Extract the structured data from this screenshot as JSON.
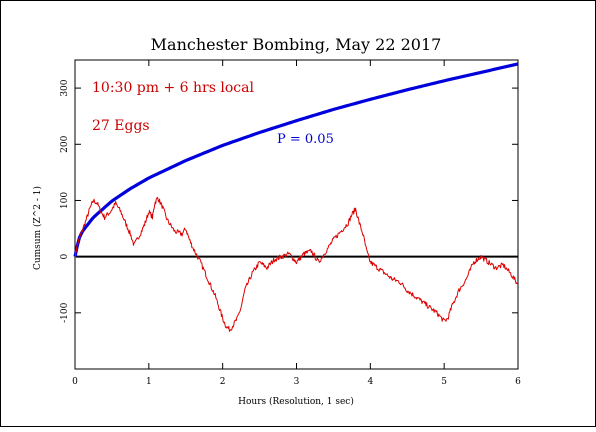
{
  "chart_data": {
    "type": "line",
    "title": "Manchester Bombing, May 22 2017",
    "xlabel": "Hours (Resolution, 1 sec)",
    "ylabel": "Cumsum (Z^2 - 1)",
    "xlim": [
      0,
      6
    ],
    "ylim": [
      -200,
      350
    ],
    "x_ticks": [
      "0",
      "1",
      "2",
      "3",
      "4",
      "5",
      "6"
    ],
    "y_ticks": [
      "-100",
      "0",
      "100",
      "200",
      "300"
    ],
    "annotations": [
      {
        "text": "10:30 pm + 6 hrs local",
        "color": "#cc0000"
      },
      {
        "text": "27 Eggs",
        "color": "#cc0000"
      },
      {
        "text": "P = 0.05",
        "color": "#0000cc"
      }
    ],
    "baseline": 0,
    "series": [
      {
        "role": "probability-envelope",
        "color": "#0000dd",
        "x": [
          0,
          0.05,
          0.1,
          0.25,
          0.5,
          0.75,
          1,
          1.5,
          2,
          2.5,
          3,
          3.5,
          4,
          4.5,
          5,
          5.5,
          6
        ],
        "values": [
          0,
          31,
          45,
          70,
          99,
          121,
          140,
          171,
          198,
          221,
          242,
          262,
          280,
          297,
          313,
          328,
          343
        ]
      },
      {
        "role": "cumulative-deviation",
        "color": "#dd0000",
        "x": [
          0,
          0.03,
          0.08,
          0.15,
          0.2,
          0.25,
          0.3,
          0.35,
          0.4,
          0.48,
          0.55,
          0.62,
          0.7,
          0.75,
          0.8,
          0.9,
          0.95,
          1.0,
          1.05,
          1.08,
          1.12,
          1.18,
          1.25,
          1.35,
          1.45,
          1.5,
          1.55,
          1.6,
          1.7,
          1.8,
          1.9,
          1.95,
          2.0,
          2.05,
          2.1,
          2.15,
          2.2,
          2.25,
          2.3,
          2.4,
          2.5,
          2.6,
          2.7,
          2.8,
          2.9,
          3.0,
          3.1,
          3.2,
          3.3,
          3.4,
          3.5,
          3.6,
          3.7,
          3.75,
          3.8,
          3.85,
          3.9,
          3.95,
          4.0,
          4.1,
          4.2,
          4.3,
          4.4,
          4.5,
          4.6,
          4.7,
          4.8,
          4.9,
          5.0,
          5.05,
          5.1,
          5.2,
          5.3,
          5.4,
          5.5,
          5.6,
          5.7,
          5.8,
          5.9,
          6.0
        ],
        "values": [
          0,
          20,
          40,
          65,
          85,
          100,
          95,
          80,
          70,
          80,
          95,
          80,
          55,
          40,
          20,
          45,
          60,
          80,
          70,
          95,
          105,
          90,
          65,
          45,
          40,
          50,
          30,
          15,
          -10,
          -40,
          -70,
          -90,
          -110,
          -125,
          -130,
          -120,
          -110,
          -90,
          -60,
          -30,
          -10,
          -20,
          -5,
          0,
          5,
          -10,
          5,
          10,
          -10,
          10,
          30,
          45,
          60,
          75,
          85,
          60,
          40,
          10,
          -10,
          -20,
          -30,
          -40,
          -45,
          -60,
          -70,
          -80,
          -90,
          -100,
          -115,
          -110,
          -90,
          -60,
          -40,
          -10,
          0,
          -10,
          -20,
          -15,
          -30,
          -50
        ]
      }
    ]
  }
}
